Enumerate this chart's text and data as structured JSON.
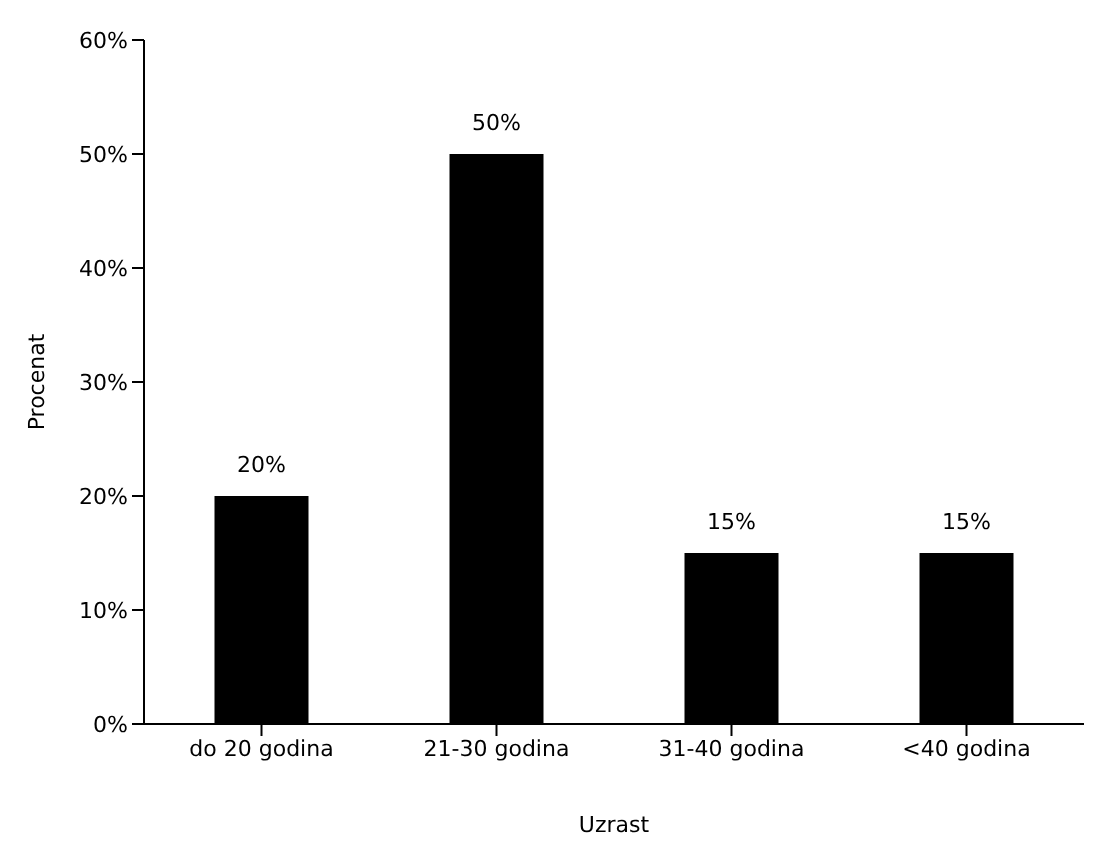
{
  "chart_data": {
    "type": "bar",
    "xlabel": "Uzrast",
    "ylabel": "Procenat",
    "categories": [
      "do 20 godina",
      "21-30 godina",
      "31-40 godina",
      "<40 godina"
    ],
    "values": [
      20,
      50,
      15,
      15
    ],
    "color": "#000000",
    "value_labels": [
      "20%",
      "50%",
      "15%",
      "15%"
    ],
    "ylim": [
      0,
      60
    ],
    "yticks": [
      {
        "value": 0,
        "label": "0%"
      },
      {
        "value": 10,
        "label": "10%"
      },
      {
        "value": 20,
        "label": "20%"
      },
      {
        "value": 30,
        "label": "30%"
      },
      {
        "value": 40,
        "label": "40%"
      },
      {
        "value": 50,
        "label": "50%"
      },
      {
        "value": 60,
        "label": "60%"
      }
    ],
    "grid": false,
    "legend": false
  }
}
